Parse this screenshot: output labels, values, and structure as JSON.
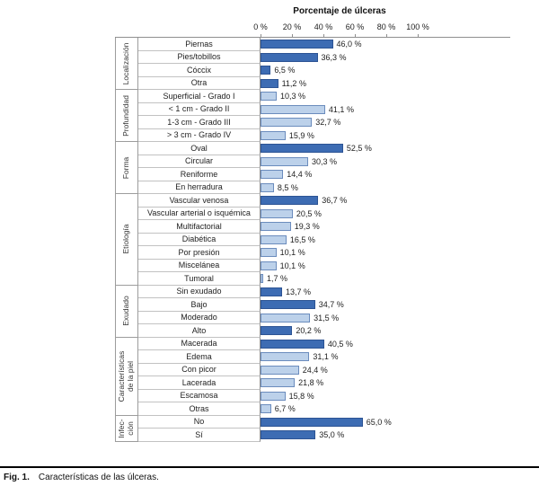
{
  "figure": {
    "background": "#ffffff"
  },
  "chart_data": {
    "type": "bar",
    "orientation": "horizontal",
    "title": "Porcentaje de úlceras",
    "x_axis": {
      "ticks": [
        "0 %",
        "20 %",
        "40 %",
        "60 %",
        "80 %",
        "100 %"
      ],
      "tick_values": [
        0,
        20,
        40,
        60,
        80,
        100
      ],
      "min": 0,
      "max": 100
    },
    "colors": {
      "dark_bar": "#3d6cb3",
      "dark_bar_border": "#2d5494",
      "light_bar": "#bcd1ea",
      "light_bar_border": "#6b8cbd"
    },
    "groups": [
      {
        "label": "Localización",
        "items": [
          {
            "label": "Piernas",
            "value": 46.0,
            "display": "46,0 %",
            "shade": "dark"
          },
          {
            "label": "Pies/tobillos",
            "value": 36.3,
            "display": "36,3 %",
            "shade": "dark"
          },
          {
            "label": "Cóccix",
            "value": 6.5,
            "display": "6,5 %",
            "shade": "dark"
          },
          {
            "label": "Otra",
            "value": 11.2,
            "display": "11,2 %",
            "shade": "dark"
          }
        ]
      },
      {
        "label": "Profundidad",
        "items": [
          {
            "label": "Superficial - Grado I",
            "value": 10.3,
            "display": "10,3 %",
            "shade": "light"
          },
          {
            "label": "< 1 cm - Grado II",
            "value": 41.1,
            "display": "41,1 %",
            "shade": "light"
          },
          {
            "label": "1-3 cm - Grado III",
            "value": 32.7,
            "display": "32,7 %",
            "shade": "light"
          },
          {
            "label": "> 3 cm - Grado IV",
            "value": 15.9,
            "display": "15,9 %",
            "shade": "light"
          }
        ]
      },
      {
        "label": "Forma",
        "items": [
          {
            "label": "Oval",
            "value": 52.5,
            "display": "52,5 %",
            "shade": "dark"
          },
          {
            "label": "Circular",
            "value": 30.3,
            "display": "30,3 %",
            "shade": "light"
          },
          {
            "label": "Reniforme",
            "value": 14.4,
            "display": "14,4 %",
            "shade": "light"
          },
          {
            "label": "En herradura",
            "value": 8.5,
            "display": "8,5 %",
            "shade": "light"
          }
        ]
      },
      {
        "label": "Etiología",
        "items": [
          {
            "label": "Vascular venosa",
            "value": 36.7,
            "display": "36,7 %",
            "shade": "dark"
          },
          {
            "label": "Vascular arterial o isquémica",
            "value": 20.5,
            "display": "20,5 %",
            "shade": "light"
          },
          {
            "label": "Multifactorial",
            "value": 19.3,
            "display": "19,3 %",
            "shade": "light"
          },
          {
            "label": "Diabética",
            "value": 16.5,
            "display": "16,5 %",
            "shade": "light"
          },
          {
            "label": "Por presión",
            "value": 10.1,
            "display": "10,1 %",
            "shade": "light"
          },
          {
            "label": "Miscelánea",
            "value": 10.1,
            "display": "10,1 %",
            "shade": "light"
          },
          {
            "label": "Tumoral",
            "value": 1.7,
            "display": "1,7 %",
            "shade": "light"
          }
        ]
      },
      {
        "label": "Exudado",
        "items": [
          {
            "label": "Sin exudado",
            "value": 13.7,
            "display": "13,7 %",
            "shade": "dark"
          },
          {
            "label": "Bajo",
            "value": 34.7,
            "display": "34,7 %",
            "shade": "dark"
          },
          {
            "label": "Moderado",
            "value": 31.5,
            "display": "31,5 %",
            "shade": "light"
          },
          {
            "label": "Alto",
            "value": 20.2,
            "display": "20,2 %",
            "shade": "dark"
          }
        ]
      },
      {
        "label": "Características\nde la piel",
        "items": [
          {
            "label": "Macerada",
            "value": 40.5,
            "display": "40,5 %",
            "shade": "dark"
          },
          {
            "label": "Edema",
            "value": 31.1,
            "display": "31,1 %",
            "shade": "light"
          },
          {
            "label": "Con picor",
            "value": 24.4,
            "display": "24,4 %",
            "shade": "light"
          },
          {
            "label": "Lacerada",
            "value": 21.8,
            "display": "21,8 %",
            "shade": "light"
          },
          {
            "label": "Escamosa",
            "value": 15.8,
            "display": "15,8 %",
            "shade": "light"
          },
          {
            "label": "Otras",
            "value": 6.7,
            "display": "6,7 %",
            "shade": "light"
          }
        ]
      },
      {
        "label": "Infec-\nción",
        "items": [
          {
            "label": "No",
            "value": 65.0,
            "display": "65,0 %",
            "shade": "dark"
          },
          {
            "label": "Sí",
            "value": 35.0,
            "display": "35,0 %",
            "shade": "dark"
          }
        ]
      }
    ]
  },
  "caption": {
    "fig_label": "Fig. 1.",
    "text": "Características de las úlceras."
  }
}
